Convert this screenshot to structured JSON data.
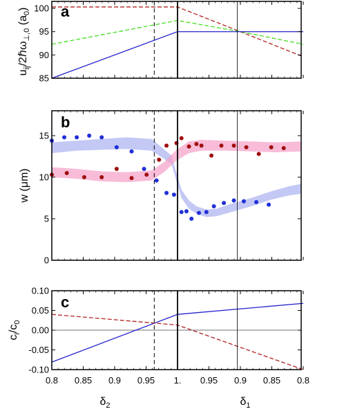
{
  "chart_data": [
    {
      "panel_label": "a",
      "type": "line",
      "ylabel": "u_ij/2ℏω_⊥,0 (a_0)",
      "ylim": [
        85,
        101.5
      ],
      "yticks": [
        85,
        90,
        95,
        100
      ],
      "grid": false,
      "vlines": {
        "solid_thick": 1.0,
        "dashed": 0.963,
        "solid_thin": 0.905
      },
      "series": [
        {
          "color": "#b22222",
          "dash": "dashed",
          "x": [
            0.8,
            0.9,
            1.0,
            0.9,
            0.8
          ],
          "branch": [
            "d2",
            "d2",
            "both",
            "d1",
            "d1"
          ],
          "y": [
            100.3,
            100.3,
            100.3,
            95.0,
            89.6
          ]
        },
        {
          "color": "#44dd22",
          "dash": "dashed",
          "x": [
            0.8,
            1.0,
            0.9,
            0.8
          ],
          "branch": [
            "d2",
            "both",
            "d1",
            "d1"
          ],
          "y": [
            92.3,
            97.4,
            95.0,
            92.3
          ]
        },
        {
          "color": "#2222cc",
          "dash": "solid",
          "x": [
            0.8,
            1.0,
            0.9,
            0.8
          ],
          "branch": [
            "d2",
            "both",
            "d1",
            "d1"
          ],
          "y": [
            85.0,
            95.0,
            95.0,
            95.0
          ]
        }
      ]
    },
    {
      "panel_label": "b",
      "type": "scatter",
      "ylabel": "w (μm)",
      "ylim": [
        0,
        18
      ],
      "yticks": [
        0,
        5,
        10,
        15
      ],
      "grid": false,
      "vlines": {
        "solid_thick": 1.0,
        "dashed": 0.963,
        "solid_thin": 0.905
      },
      "bands": [
        {
          "color": "#aab0f0",
          "x": [
            0.0,
            0.1,
            0.2,
            0.3,
            0.4,
            0.48,
            0.5,
            0.52,
            0.55,
            0.58,
            0.62,
            0.66,
            0.72,
            0.8,
            0.88,
            0.95,
            1.0
          ],
          "lower": [
            12.9,
            13.2,
            13.3,
            13.4,
            13.2,
            11.6,
            9.5,
            7.5,
            6.2,
            5.6,
            5.2,
            5.3,
            5.8,
            6.5,
            7.3,
            7.8,
            8.0
          ],
          "upper": [
            14.2,
            14.4,
            14.6,
            14.8,
            14.6,
            12.6,
            10.5,
            8.5,
            7.2,
            6.5,
            6.1,
            6.2,
            6.8,
            7.5,
            8.3,
            8.9,
            9.2
          ]
        },
        {
          "color": "#f5a0c8",
          "x": [
            0.0,
            0.1,
            0.2,
            0.3,
            0.4,
            0.45,
            0.5,
            0.55,
            0.6,
            0.7,
            0.8,
            0.9,
            1.0
          ],
          "lower": [
            10.0,
            9.8,
            9.5,
            9.4,
            9.6,
            10.6,
            12.0,
            12.9,
            13.2,
            13.2,
            13.1,
            13.0,
            13.1
          ],
          "upper": [
            11.2,
            11.0,
            10.7,
            10.6,
            10.8,
            11.8,
            13.3,
            14.3,
            14.5,
            14.4,
            14.3,
            14.2,
            14.3
          ]
        }
      ],
      "points_blue": {
        "color": "#1f2fd8",
        "x": [
          0.0,
          0.05,
          0.1,
          0.15,
          0.2,
          0.26,
          0.32,
          0.37,
          0.42,
          0.46,
          0.49,
          0.52,
          0.54,
          0.56,
          0.59,
          0.62,
          0.65,
          0.69,
          0.73,
          0.77,
          0.82,
          0.87
        ],
        "y": [
          14.4,
          14.8,
          14.8,
          15.0,
          14.8,
          13.6,
          13.1,
          11.0,
          9.6,
          8.1,
          7.9,
          5.8,
          5.9,
          5.0,
          5.7,
          5.8,
          6.5,
          6.9,
          7.2,
          7.1,
          7.0,
          6.7
        ]
      },
      "points_red": {
        "color": "#a01010",
        "x": [
          0.0,
          0.06,
          0.13,
          0.2,
          0.26,
          0.32,
          0.38,
          0.43,
          0.46,
          0.5,
          0.52,
          0.55,
          0.58,
          0.6,
          0.64,
          0.68,
          0.73,
          0.78,
          0.83,
          0.88,
          0.93
        ],
        "y": [
          10.3,
          10.5,
          10.0,
          10.0,
          11.0,
          9.9,
          10.3,
          12.1,
          13.8,
          14.1,
          14.7,
          13.7,
          14.0,
          13.8,
          12.6,
          13.8,
          13.8,
          13.6,
          12.8,
          13.6,
          13.5
        ]
      }
    },
    {
      "panel_label": "c",
      "type": "line",
      "ylabel": "c_i/c_0",
      "ylim": [
        -0.1,
        0.1
      ],
      "yticks": [
        -0.1,
        -0.05,
        0.0,
        0.05,
        0.1
      ],
      "ytick_labels": [
        "-0.10",
        "-0.05",
        "0.00",
        "0.05",
        "0.10"
      ],
      "hline": 0.0,
      "grid": false,
      "vlines": {
        "solid_thick": 1.0,
        "dashed": 0.963,
        "solid_thin": 0.905
      },
      "series": [
        {
          "color": "#2222cc",
          "dash": "solid",
          "x": [
            0.8,
            1.0,
            0.8
          ],
          "branch": [
            "d2",
            "both",
            "d1"
          ],
          "y": [
            -0.081,
            0.04,
            0.068
          ]
        },
        {
          "color": "#b22222",
          "dash": "dashed",
          "x": [
            0.8,
            1.0,
            0.8
          ],
          "branch": [
            "d2",
            "both",
            "d1"
          ],
          "y": [
            0.04,
            0.013,
            -0.1
          ]
        }
      ]
    }
  ],
  "axes": {
    "x_tick_labels_left": [
      "0.8",
      "0.85",
      "0.9",
      "0.95"
    ],
    "x_tick_center": "1.",
    "x_tick_labels_right": [
      "0.95",
      "0.9",
      "0.85",
      "0.8"
    ],
    "xlabel_left": "δ_2",
    "xlabel_right": "δ_1"
  },
  "ylabels": {
    "a_main": "u",
    "a_sub1": "ij",
    "a_mid": "/2ℏω",
    "a_sub2": "⊥,0",
    "a_tail": " (a",
    "a_sub3": "0",
    "a_close": ")",
    "b": "w (μm)",
    "c_main": "c",
    "c_sub1": "i",
    "c_mid": "/c",
    "c_sub2": "0"
  },
  "letters": {
    "a": "a",
    "b": "b",
    "c": "c"
  },
  "xlabels": {
    "left_main": "δ",
    "left_sub": "2",
    "right_main": "δ",
    "right_sub": "1"
  }
}
